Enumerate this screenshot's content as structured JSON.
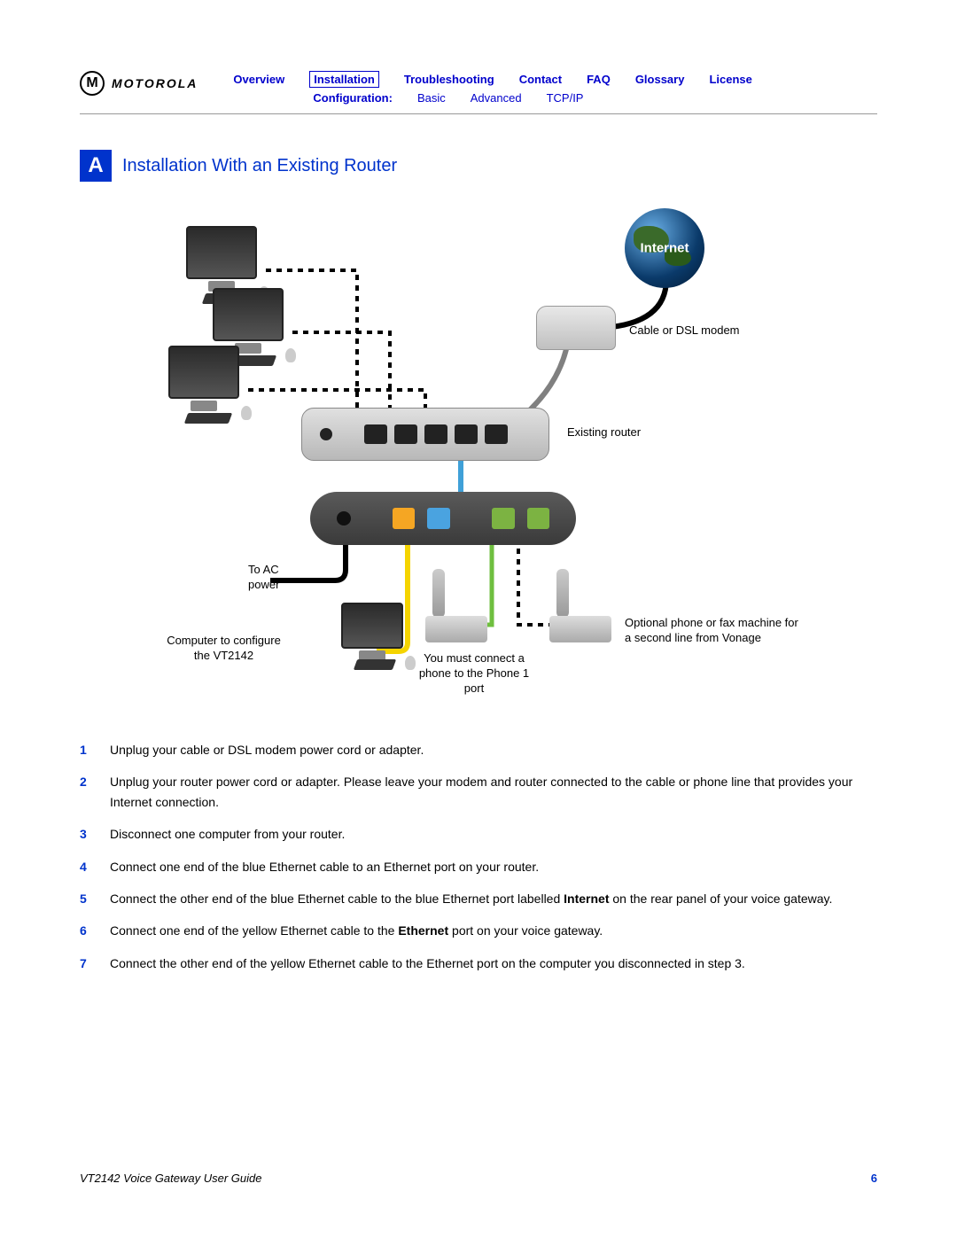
{
  "brand": "MOTOROLA",
  "nav": {
    "row1": [
      "Overview",
      "Installation",
      "Troubleshooting",
      "Contact",
      "FAQ",
      "Glossary",
      "License"
    ],
    "active": "Installation",
    "row2_label": "Configuration:",
    "row2": [
      "Basic",
      "Advanced",
      "TCP/IP"
    ]
  },
  "section": {
    "badge": "A",
    "title": "Installation With an Existing Router"
  },
  "diagram": {
    "globe_text": "Internet",
    "labels": {
      "modem": "Cable or DSL modem",
      "router": "Existing router",
      "ac": "To AC power",
      "config_pc": "Computer to configure the VT2142",
      "phone1": "You must connect a phone to the Phone 1 port",
      "phone2": "Optional phone or fax machine for a second line from Vonage"
    },
    "cable_colors": {
      "modem_to_globe": "#000000",
      "modem_to_router": "#808080",
      "router_to_gateway_blue": "#3fa0d8",
      "gateway_to_pc_yellow": "#f5d400",
      "gateway_power": "#000000",
      "gateway_phone_green": "#6fbf3f",
      "dotted": "#000000"
    }
  },
  "steps": [
    {
      "n": "1",
      "text": "Unplug your cable or DSL modem power cord or adapter."
    },
    {
      "n": "2",
      "text": "Unplug your router power cord or adapter. Please leave your modem and router connected to the cable or phone line that provides your Internet connection."
    },
    {
      "n": "3",
      "text": "Disconnect one computer from your router."
    },
    {
      "n": "4",
      "text": "Connect one end of the blue Ethernet cable to an Ethernet port on your router."
    },
    {
      "n": "5",
      "html": "Connect the other end of the blue Ethernet cable to the blue Ethernet port labelled <b>Internet</b> on the rear panel of your voice gateway."
    },
    {
      "n": "6",
      "html": "Connect one end of the yellow Ethernet cable to the <b>Ethernet</b> port on your voice gateway."
    },
    {
      "n": "7",
      "text": "Connect the other end of the yellow Ethernet cable to the Ethernet port on the computer you disconnected in step 3."
    }
  ],
  "footer": {
    "title": "VT2142 Voice Gateway User Guide",
    "page": "6"
  }
}
